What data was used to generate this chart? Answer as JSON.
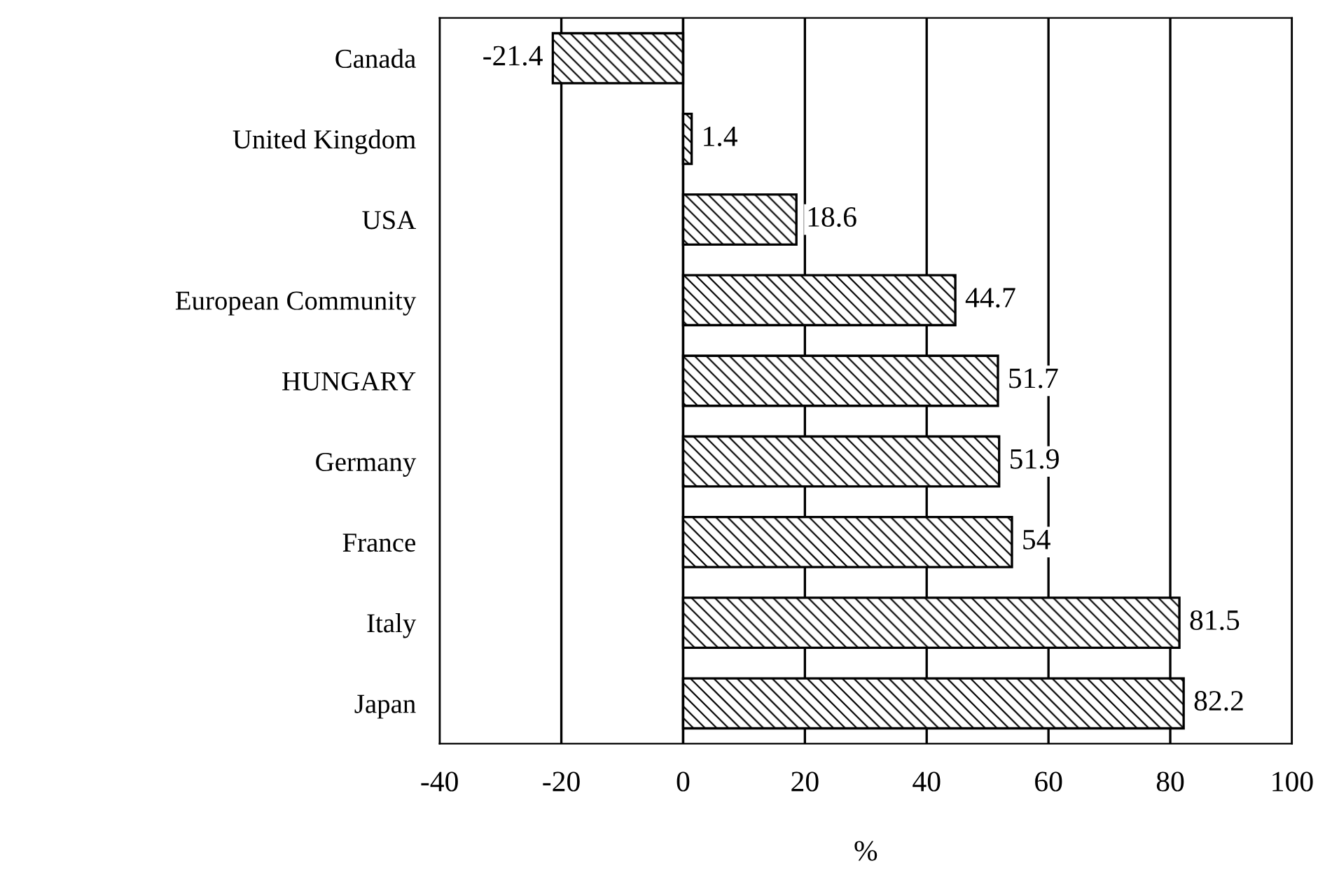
{
  "chart_data": {
    "type": "bar",
    "orientation": "horizontal",
    "xlabel": "%",
    "categories": [
      "Canada",
      "United Kingdom",
      "USA",
      "European Community",
      "HUNGARY",
      "Germany",
      "France",
      "Italy",
      "Japan"
    ],
    "values": [
      -21.4,
      1.4,
      18.6,
      44.7,
      51.7,
      51.9,
      54,
      81.5,
      82.2
    ],
    "color": "#000000",
    "xlim": [
      -40,
      100
    ],
    "xticks": [
      -40,
      -20,
      0,
      20,
      40,
      60,
      80,
      100
    ],
    "grid": "x",
    "data_labels": true
  }
}
